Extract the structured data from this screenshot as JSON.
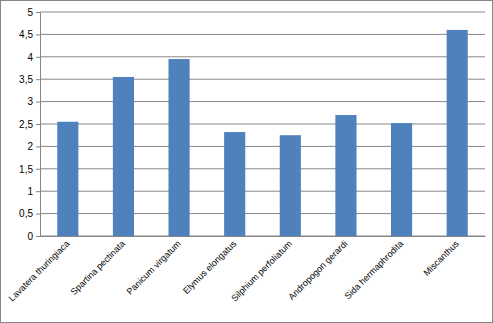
{
  "chart_data": {
    "type": "bar",
    "categories": [
      "Lavatera thuringiaca",
      "Spartina pectinata",
      "Panicum virgatum",
      "Elymus elongatus",
      "Silphium perfoliatum",
      "Andropogon gerardi",
      "Sida hermaphrodita",
      "Miscanthus"
    ],
    "values": [
      2.55,
      3.55,
      3.95,
      2.32,
      2.25,
      2.7,
      2.52,
      4.6
    ],
    "color": "#4f81bd",
    "ylim": [
      0,
      5
    ],
    "yticks": [
      0,
      {
        "value": 0.5,
        "label": "0,5"
      },
      1,
      {
        "value": 1.5,
        "label": "1,5"
      },
      2,
      {
        "value": 2.5,
        "label": "2,5"
      },
      3,
      {
        "value": 3.5,
        "label": "3,5"
      },
      4,
      {
        "value": 4.5,
        "label": "4,5"
      },
      5
    ],
    "grid": true
  }
}
